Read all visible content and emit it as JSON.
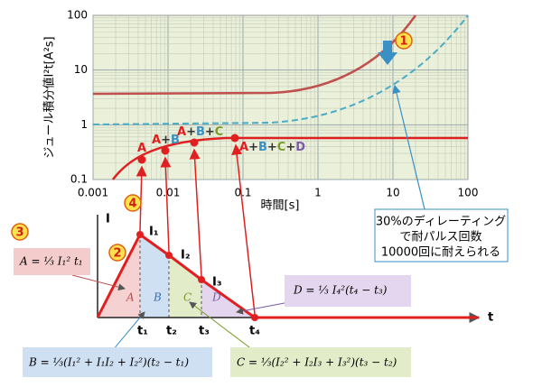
{
  "chart": {
    "y_axis_label": "ジュール積分値I²t[A²s]",
    "x_axis_label": "時間[s]",
    "x_ticks": [
      "0.001",
      "0.01",
      "0.1",
      "1",
      "10",
      "100"
    ],
    "y_ticks": [
      "0.1",
      "1",
      "10",
      "100"
    ],
    "point_labels": [
      "A",
      "A+B",
      "A+B+C",
      "A+B+C+D"
    ]
  },
  "markers": [
    "1",
    "2",
    "3",
    "4"
  ],
  "note": [
    "30%のディレーティング",
    "で耐パルス回数",
    "10000回に耐えられる"
  ],
  "diagram": {
    "i_axis": "I",
    "t_axis": "t",
    "current_labels": [
      "I₁",
      "I₂",
      "I₃"
    ],
    "time_labels": [
      "t₁",
      "t₂",
      "t₃",
      "t₄"
    ],
    "regions": [
      "A",
      "B",
      "C",
      "D"
    ],
    "formulas": {
      "A": "A = ⅓ I₁² t₁",
      "B": "B = ⅓(I₁² + I₁I₂ + I₂²)(t₂ − t₁)",
      "C": "C = ⅓(I₂² + I₂I₃ + I₃²)(t₃ − t₂)",
      "D": "D = ⅓ I₄²(t₄ − t₃)"
    }
  }
}
